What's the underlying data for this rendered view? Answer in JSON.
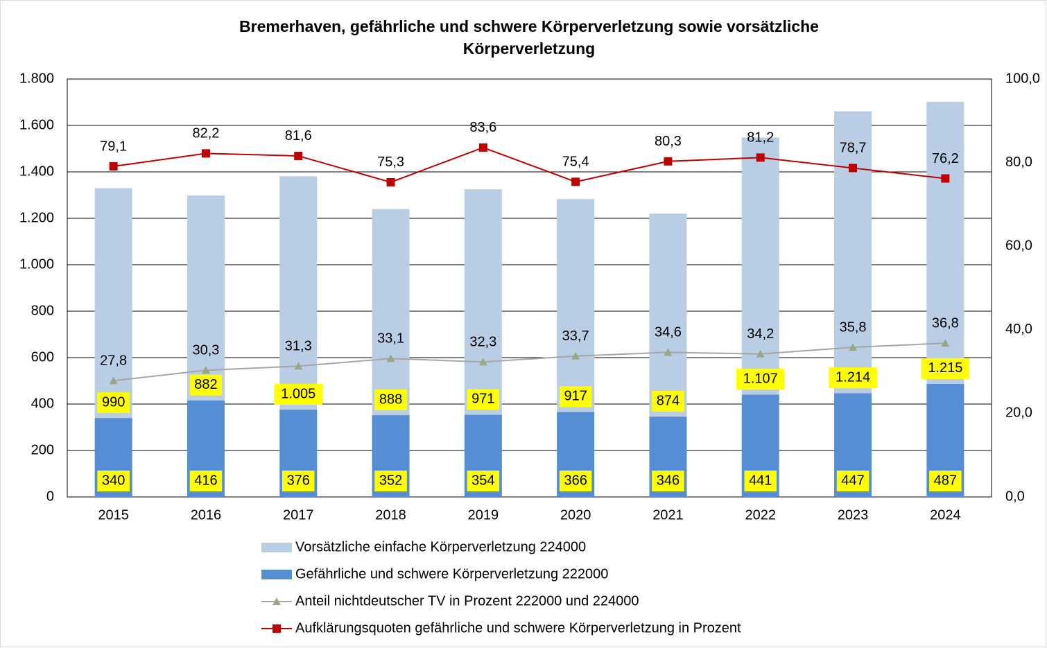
{
  "chart_data": {
    "type": "bar-line",
    "title": [
      "Bremerhaven, gefährliche und schwere Körperverletzung sowie vorsätzliche",
      "Körperverletzung"
    ],
    "categories": [
      "2015",
      "2016",
      "2017",
      "2018",
      "2019",
      "2020",
      "2021",
      "2022",
      "2023",
      "2024"
    ],
    "ylim": [
      0,
      1800
    ],
    "yticks": [
      0,
      200,
      400,
      600,
      800,
      {
        "value": 1000,
        "label": "1.000"
      },
      {
        "value": 1200,
        "label": "1.200"
      },
      {
        "value": 1400,
        "label": "1.400"
      },
      {
        "value": 1600,
        "label": "1.600"
      },
      {
        "value": 1800,
        "label": "1.800"
      }
    ],
    "y2lim": [
      0,
      100
    ],
    "y2ticks": [
      {
        "value": 0,
        "label": "0,0"
      },
      {
        "value": 20,
        "label": "20,0"
      },
      {
        "value": 40,
        "label": "40,0"
      },
      {
        "value": 60,
        "label": "60,0"
      },
      {
        "value": 80,
        "label": "80,0"
      },
      {
        "value": 100,
        "label": "100,0"
      }
    ],
    "grid": true,
    "legend": "bottom",
    "series": [
      {
        "name": "Vorsätzliche einfache Körperverletzung 224000",
        "type": "bar",
        "color": "#b9cde5",
        "values": [
          990,
          882,
          1005,
          888,
          971,
          917,
          874,
          1107,
          1214,
          1215
        ],
        "value_labels": [
          "990",
          "882",
          "1.005",
          "888",
          "971",
          "917",
          "874",
          "1.107",
          "1.214",
          "1.215"
        ]
      },
      {
        "name": "Gefährliche und schwere Körperverletzung 222000",
        "type": "bar",
        "color": "#558ed5",
        "values": [
          340,
          416,
          376,
          352,
          354,
          366,
          346,
          441,
          447,
          487
        ]
      },
      {
        "name": "Anteil nichtdeutscher TV in Prozent 222000 und 224000",
        "type": "line",
        "axis": "y2",
        "color": "#a6a6a6",
        "marker_color": "#98a886",
        "values": [
          27.8,
          30.3,
          31.3,
          33.1,
          32.3,
          33.7,
          34.6,
          34.2,
          35.8,
          36.8
        ],
        "value_labels": [
          "27,8",
          "30,3",
          "31,3",
          "33,1",
          "32,3",
          "33,7",
          "34,6",
          "34,2",
          "35,8",
          "36,8"
        ]
      },
      {
        "name": "Aufklärungsquoten gefährliche und schwere Körperverletzung in Prozent",
        "type": "line",
        "axis": "y2",
        "color": "#c00000",
        "values": [
          79.1,
          82.2,
          81.6,
          75.3,
          83.6,
          75.4,
          80.3,
          81.2,
          78.7,
          76.2
        ],
        "value_labels": [
          "79,1",
          "82,2",
          "81,6",
          "75,3",
          "83,6",
          "75,4",
          "80,3",
          "81,2",
          "78,7",
          "76,2"
        ]
      }
    ]
  }
}
